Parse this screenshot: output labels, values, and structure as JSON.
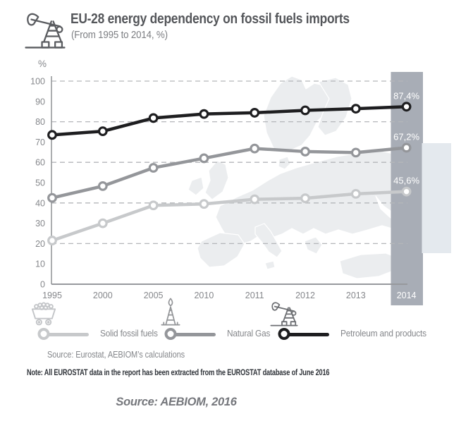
{
  "header": {
    "title": "EU-28 energy dependency on fossil fuels imports",
    "subtitle": "(From 1995 to 2014, %)"
  },
  "chart_data": {
    "type": "line",
    "title": "EU-28 energy dependency on fossil fuels imports",
    "subtitle": "(From 1995 to 2014, %)",
    "unit_label": "%",
    "xlabel": "",
    "ylabel": "%",
    "categories": [
      "1995",
      "2000",
      "2005",
      "2010",
      "2011",
      "2012",
      "2013",
      "2014"
    ],
    "y_ticks": [
      0,
      10,
      20,
      30,
      40,
      50,
      60,
      70,
      80,
      90,
      100
    ],
    "ylim": [
      0,
      100
    ],
    "gridlines_at": [
      20,
      40,
      60,
      80,
      100
    ],
    "grid": "dashed horizontal",
    "legend_position": "bottom",
    "highlight_category": "2014",
    "series": [
      {
        "name": "Solid fossil fuels",
        "color": "#c7c9cb",
        "values": [
          21.5,
          30.0,
          38.8,
          39.5,
          41.8,
          42.3,
          44.5,
          45.6
        ],
        "end_label": "45,6%"
      },
      {
        "name": "Natural Gas",
        "color": "#94969a",
        "values": [
          42.5,
          48.3,
          57.3,
          62.0,
          66.8,
          65.3,
          64.8,
          67.2
        ],
        "end_label": "67,2%"
      },
      {
        "name": "Petroleum and products",
        "color": "#1e1e20",
        "values": [
          73.5,
          75.3,
          81.8,
          83.8,
          84.4,
          85.6,
          86.4,
          87.4
        ],
        "end_label": "87,4%"
      }
    ]
  },
  "legend": {
    "items": [
      {
        "label": "Solid fossil fuels",
        "icon": "coal-cart-icon",
        "color": "#c7c9cb"
      },
      {
        "label": "Natural Gas",
        "icon": "gas-derrick-icon",
        "color": "#94969a"
      },
      {
        "label": "Petroleum and products",
        "icon": "oil-pumpjack-icon",
        "color": "#1e1e20"
      }
    ]
  },
  "footer": {
    "source_inline": "Source: Eurostat, AEBIOM’s calculations",
    "note": "Note: All EUROSTAT data in the report has been extracted from the EUROSTAT database of June 2016",
    "source_bottom": "Source: AEBIOM, 2016"
  },
  "colors": {
    "title_text": "#54565a",
    "axis_text": "#85878b",
    "grid_dash": "#b4b6b9",
    "axis_line": "#97999d",
    "highlight_column": "#a8adb6",
    "side_band": "#e4e9ee",
    "map_watermark": "#ebedef",
    "value_label_text": "#ffffff"
  }
}
